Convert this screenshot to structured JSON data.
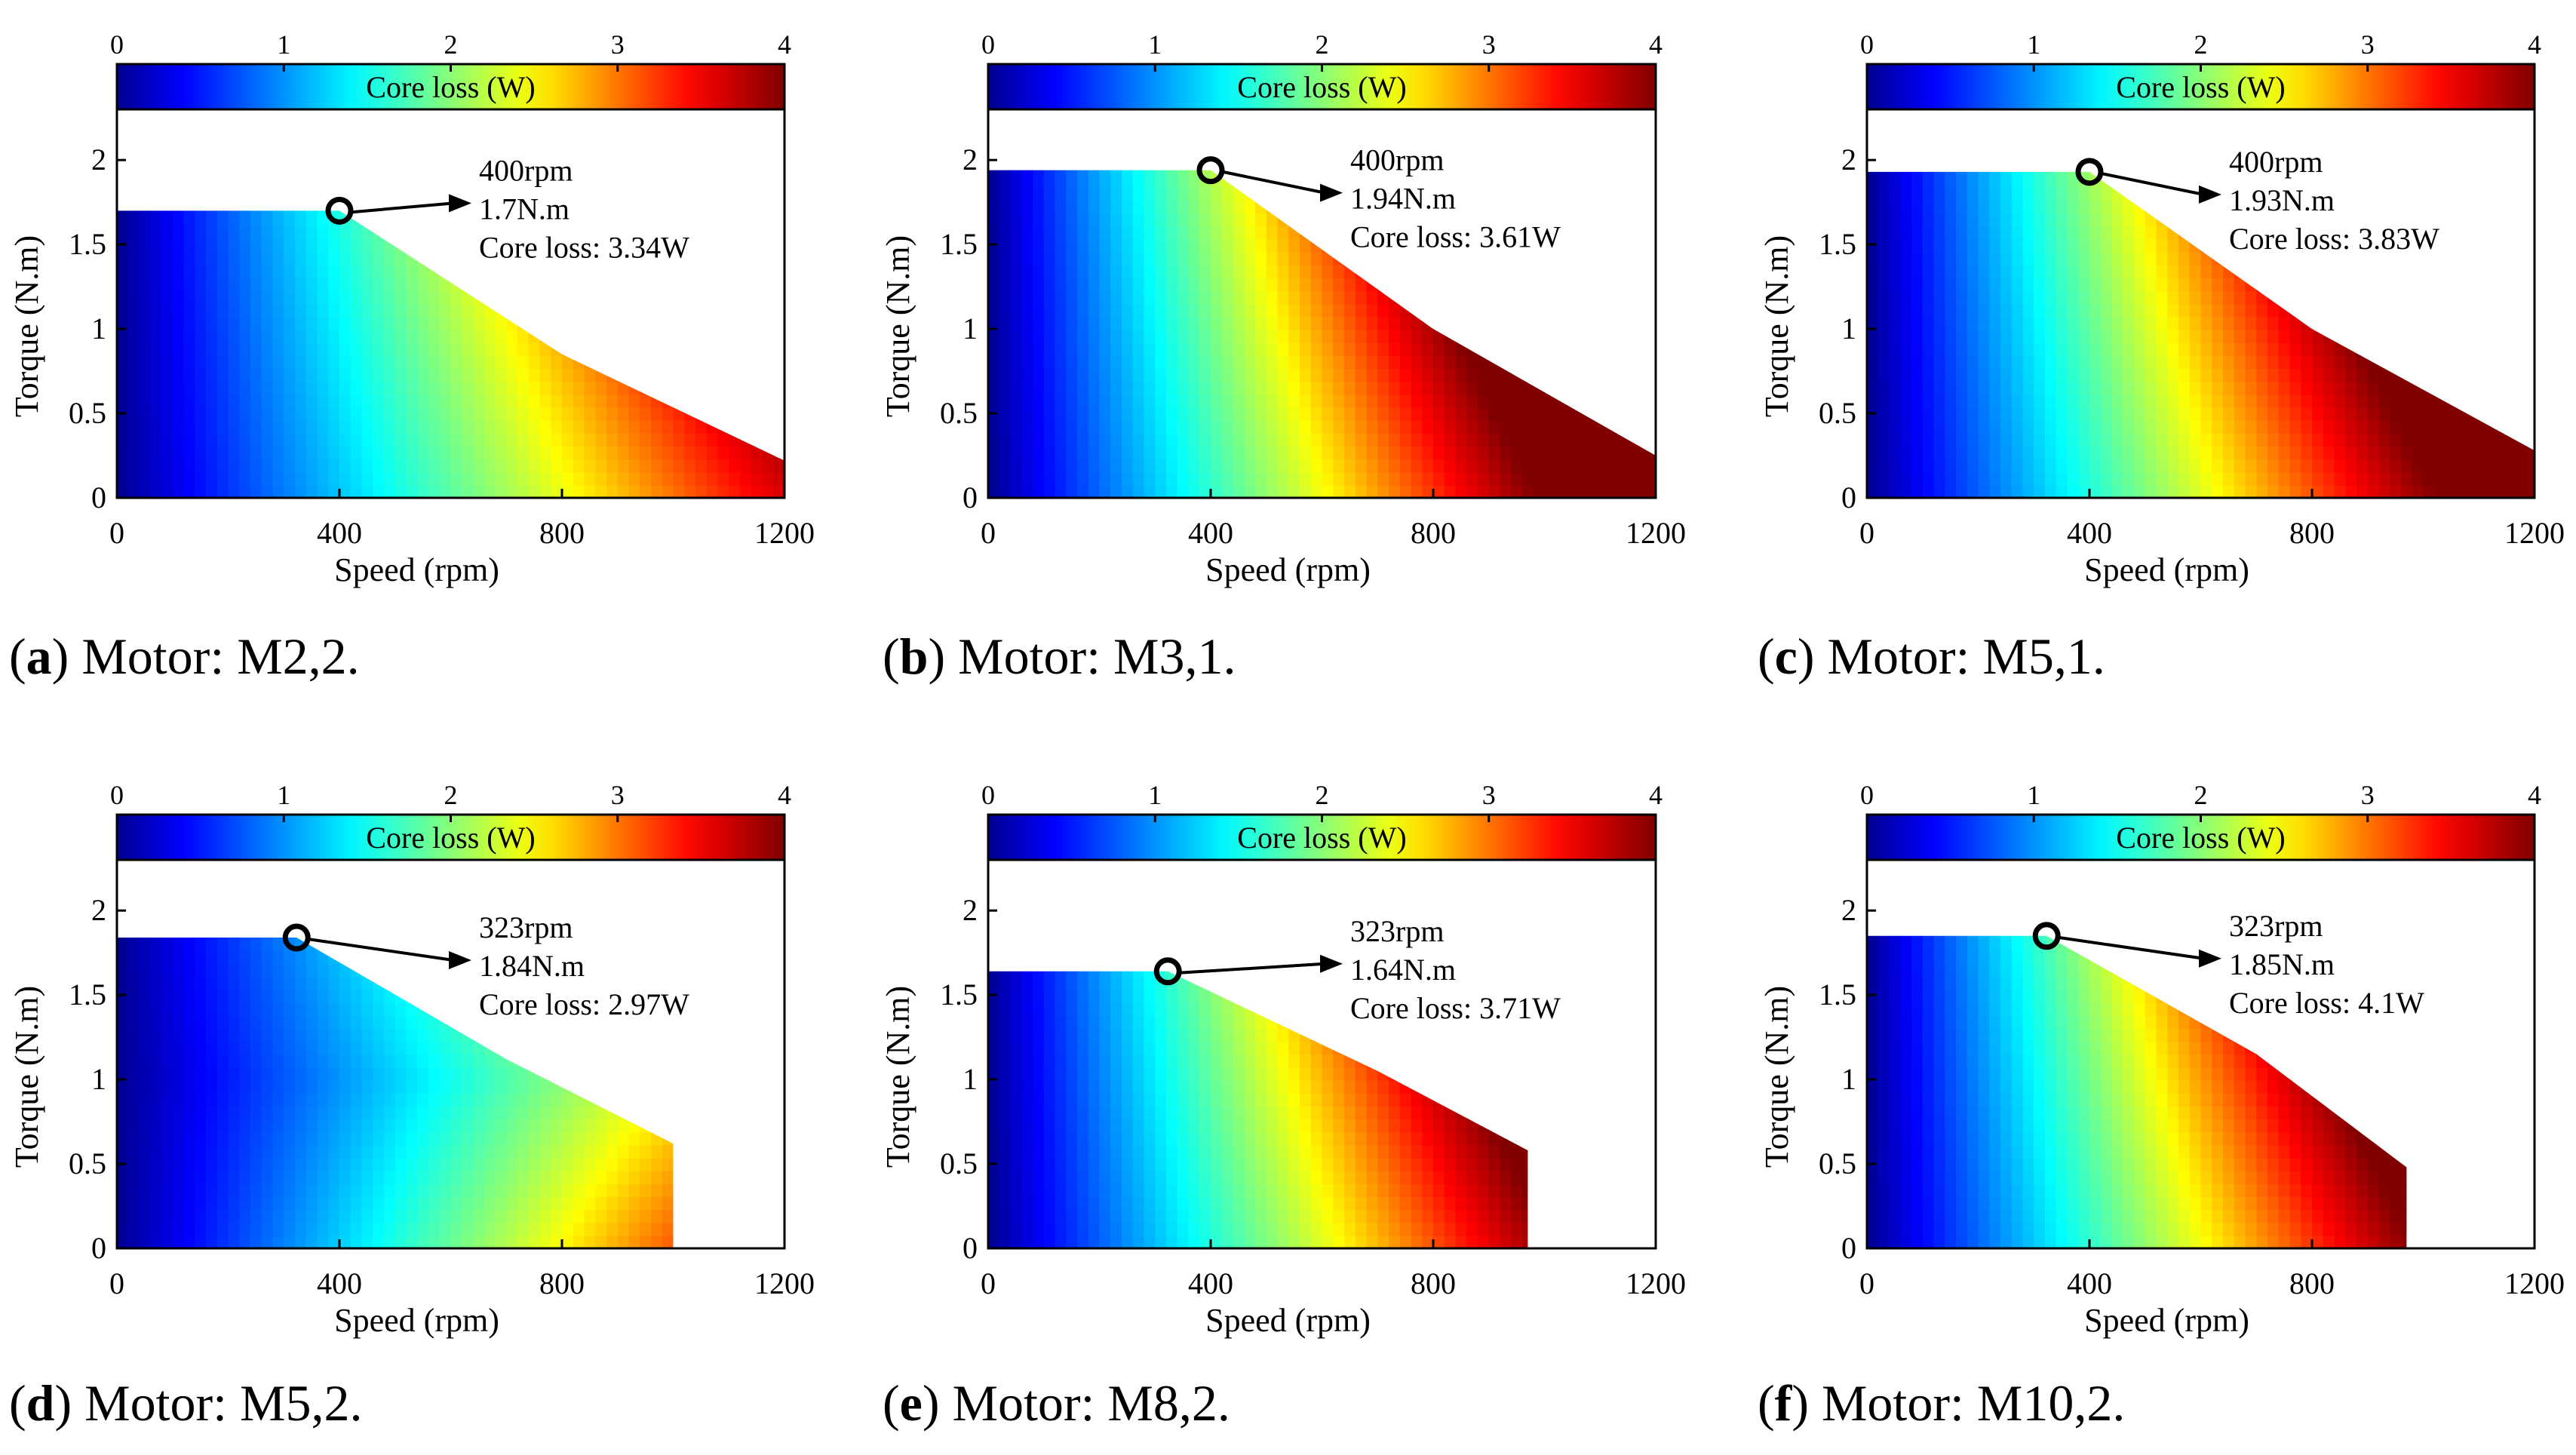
{
  "figure": {
    "colorbar_range": [
      0,
      4
    ],
    "colorbar_ticks": [
      "0",
      "1",
      "2",
      "3",
      "4"
    ],
    "colormap": "jet",
    "colormap_stops": [
      "#00008f",
      "#0000ff",
      "#00ffff",
      "#ffff00",
      "#ff0000",
      "#800000"
    ],
    "colorbar_label": "Core loss (W)",
    "xlabel": "Speed (rpm)",
    "ylabel": "Torque (N.m)",
    "x_ticks": [
      "0",
      "400",
      "800",
      "1200"
    ],
    "y_ticks": [
      "0",
      "0.5",
      "1",
      "1.5",
      "2"
    ]
  },
  "chart_data": [
    {
      "type": "heatmap",
      "panel": "a",
      "caption_label": "(a)",
      "caption_text": " Motor: M2,2.",
      "title": "Motor: M2,2.",
      "xlabel": "Speed (rpm)",
      "ylabel": "Torque (N.m)",
      "xlim": [
        0,
        1200
      ],
      "ylim": [
        0,
        2.3
      ],
      "x_ticks": [
        0,
        400,
        800,
        1200
      ],
      "y_ticks": [
        0,
        0.5,
        1,
        1.5,
        2
      ],
      "colorbar": {
        "label": "Core loss (W)",
        "range": [
          0,
          4
        ],
        "ticks": [
          0,
          1,
          2,
          3,
          4
        ]
      },
      "boundary": [
        [
          0,
          1.7
        ],
        [
          400,
          1.7
        ],
        [
          800,
          0.85
        ],
        [
          1200,
          0.22
        ]
      ],
      "loss_scale": 1.0,
      "annotation": {
        "speed": 400,
        "torque": 1.7,
        "lines": [
          "400rpm",
          "1.7N.m",
          "Core loss: 3.34W"
        ]
      }
    },
    {
      "type": "heatmap",
      "panel": "b",
      "caption_label": "(b)",
      "caption_text": " Motor: M3,1.",
      "title": "Motor: M3,1.",
      "xlabel": "Speed (rpm)",
      "ylabel": "Torque (N.m)",
      "xlim": [
        0,
        1200
      ],
      "ylim": [
        0,
        2.3
      ],
      "x_ticks": [
        0,
        400,
        800,
        1200
      ],
      "y_ticks": [
        0,
        0.5,
        1,
        1.5,
        2
      ],
      "colorbar": {
        "label": "Core loss (W)",
        "range": [
          0,
          4
        ],
        "ticks": [
          0,
          1,
          2,
          3,
          4
        ]
      },
      "boundary": [
        [
          0,
          1.94
        ],
        [
          400,
          1.94
        ],
        [
          800,
          1.0
        ],
        [
          1200,
          0.25
        ]
      ],
      "loss_scale": 1.35,
      "annotation": {
        "speed": 400,
        "torque": 1.94,
        "lines": [
          "400rpm",
          "1.94N.m",
          "Core loss: 3.61W"
        ]
      }
    },
    {
      "type": "heatmap",
      "panel": "c",
      "caption_label": "(c)",
      "caption_text": " Motor: M5,1.",
      "title": "Motor: M5,1.",
      "xlabel": "Speed (rpm)",
      "ylabel": "Torque (N.m)",
      "xlim": [
        0,
        1200
      ],
      "ylim": [
        0,
        2.3
      ],
      "x_ticks": [
        0,
        400,
        800,
        1200
      ],
      "y_ticks": [
        0,
        0.5,
        1,
        1.5,
        2
      ],
      "colorbar": {
        "label": "Core loss (W)",
        "range": [
          0,
          4
        ],
        "ticks": [
          0,
          1,
          2,
          3,
          4
        ]
      },
      "boundary": [
        [
          0,
          1.93
        ],
        [
          400,
          1.93
        ],
        [
          800,
          1.0
        ],
        [
          1200,
          0.28
        ]
      ],
      "loss_scale": 1.3,
      "annotation": {
        "speed": 400,
        "torque": 1.93,
        "lines": [
          "400rpm",
          "1.93N.m",
          "Core loss: 3.83W"
        ]
      }
    },
    {
      "type": "heatmap",
      "panel": "d",
      "caption_label": "(d)",
      "caption_text": " Motor: M5,2.",
      "title": "Motor: M5,2.",
      "xlabel": "Speed (rpm)",
      "ylabel": "Torque (N.m)",
      "xlim": [
        0,
        1200
      ],
      "ylim": [
        0,
        2.3
      ],
      "x_ticks": [
        0,
        400,
        800,
        1200
      ],
      "y_ticks": [
        0,
        0.5,
        1,
        1.5,
        2
      ],
      "colorbar": {
        "label": "Core loss (W)",
        "range": [
          0,
          4
        ],
        "ticks": [
          0,
          1,
          2,
          3,
          4
        ]
      },
      "boundary": [
        [
          0,
          1.84
        ],
        [
          323,
          1.84
        ],
        [
          700,
          1.12
        ],
        [
          1000,
          0.62
        ],
        [
          1000,
          0
        ]
      ],
      "loss_scale": 0.95,
      "annotation": {
        "speed": 323,
        "torque": 1.84,
        "lines": [
          "323rpm",
          "1.84N.m",
          "Core loss: 2.97W"
        ]
      }
    },
    {
      "type": "heatmap",
      "panel": "e",
      "caption_label": "(e)",
      "caption_text": " Motor: M8,2.",
      "title": "Motor: M8,2.",
      "xlabel": "Speed (rpm)",
      "ylabel": "Torque (N.m)",
      "xlim": [
        0,
        1200
      ],
      "ylim": [
        0,
        2.3
      ],
      "x_ticks": [
        0,
        400,
        800,
        1200
      ],
      "y_ticks": [
        0,
        0.5,
        1,
        1.5,
        2
      ],
      "colorbar": {
        "label": "Core loss (W)",
        "range": [
          0,
          4
        ],
        "ticks": [
          0,
          1,
          2,
          3,
          4
        ]
      },
      "boundary": [
        [
          0,
          1.64
        ],
        [
          323,
          1.64
        ],
        [
          700,
          1.05
        ],
        [
          970,
          0.58
        ],
        [
          970,
          0
        ]
      ],
      "loss_scale": 1.3,
      "annotation": {
        "speed": 323,
        "torque": 1.64,
        "lines": [
          "323rpm",
          "1.64N.m",
          "Core loss: 3.71W"
        ]
      }
    },
    {
      "type": "heatmap",
      "panel": "f",
      "caption_label": "(f)",
      "caption_text": " Motor: M10,2.",
      "title": "Motor: M10,2.",
      "xlabel": "Speed (rpm)",
      "ylabel": "Torque (N.m)",
      "xlim": [
        0,
        1200
      ],
      "ylim": [
        0,
        2.3
      ],
      "x_ticks": [
        0,
        400,
        800,
        1200
      ],
      "y_ticks": [
        0,
        0.5,
        1,
        1.5,
        2
      ],
      "colorbar": {
        "label": "Core loss (W)",
        "range": [
          0,
          4
        ],
        "ticks": [
          0,
          1,
          2,
          3,
          4
        ]
      },
      "boundary": [
        [
          0,
          1.85
        ],
        [
          323,
          1.85
        ],
        [
          700,
          1.15
        ],
        [
          970,
          0.48
        ],
        [
          970,
          0
        ]
      ],
      "loss_scale": 1.35,
      "annotation": {
        "speed": 323,
        "torque": 1.85,
        "lines": [
          "323rpm",
          "1.85N.m",
          "Core loss: 4.1W"
        ]
      }
    }
  ]
}
